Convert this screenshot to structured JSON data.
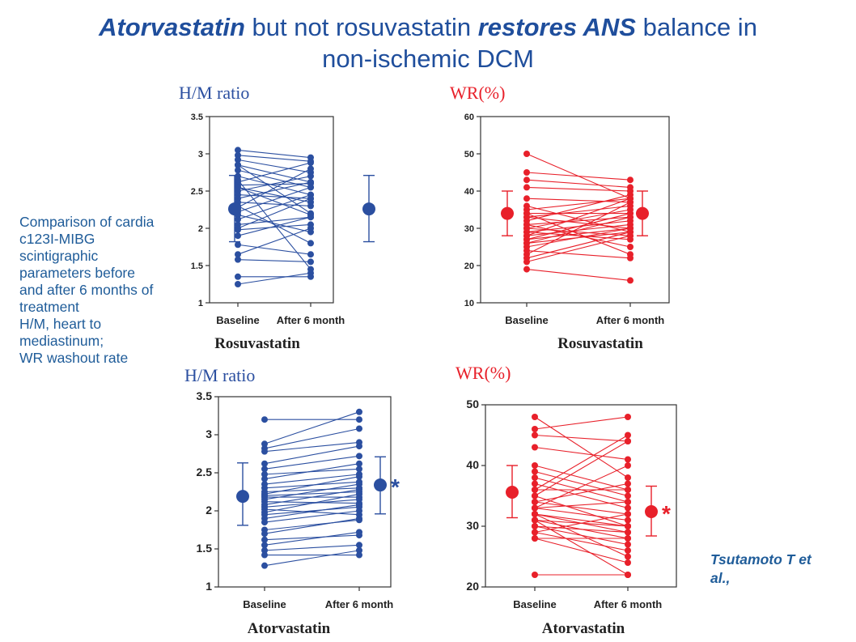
{
  "title": {
    "part1": "Atorvastatin",
    "part2": " but not rosuvastatin ",
    "part3": "restores ANS",
    "part4": " balance in",
    "line2": "non-ischemic DCM"
  },
  "caption": {
    "text": "Comparison of cardia c123I-MIBG scintigraphic parameters before and after 6 months of treatment",
    "abbrev1": "H/M, heart to mediastinum;",
    "abbrev2": "WR washout rate"
  },
  "citation": "Tsutamoto T et al.,",
  "colors": {
    "hm": "#2b4fa0",
    "wr": "#e8202a",
    "title": "#1f4e9c",
    "caption": "#1f5c99"
  },
  "chart_data": [
    {
      "type": "line",
      "title": "H/M ratio",
      "xlabel": "Rosuvastatin",
      "categories": [
        "Baseline",
        "After 6 month"
      ],
      "ylim": [
        1,
        3.5
      ],
      "yticks": [
        "1",
        "1.5",
        "2",
        "2.5",
        "3",
        "3.5"
      ],
      "pairs": [
        [
          3.05,
          2.95
        ],
        [
          2.98,
          2.9
        ],
        [
          2.92,
          2.75
        ],
        [
          2.85,
          2.62
        ],
        [
          2.78,
          2.55
        ],
        [
          2.7,
          2.45
        ],
        [
          2.62,
          2.88
        ],
        [
          2.58,
          2.6
        ],
        [
          2.55,
          2.18
        ],
        [
          2.5,
          2.7
        ],
        [
          2.45,
          2.4
        ],
        [
          2.4,
          2.62
        ],
        [
          2.35,
          2.3
        ],
        [
          2.28,
          2.8
        ],
        [
          2.22,
          2.55
        ],
        [
          2.18,
          1.95
        ],
        [
          2.12,
          2.45
        ],
        [
          2.05,
          2.15
        ],
        [
          1.98,
          2.05
        ],
        [
          1.9,
          2.15
        ],
        [
          1.78,
          1.65
        ],
        [
          1.65,
          2.0
        ],
        [
          1.58,
          1.55
        ],
        [
          1.35,
          1.35
        ],
        [
          1.25,
          1.4
        ],
        [
          2.65,
          1.45
        ],
        [
          2.3,
          1.8
        ],
        [
          2.85,
          2.2
        ],
        [
          2.0,
          2.4
        ],
        [
          2.55,
          2.35
        ]
      ],
      "summary": [
        {
          "mean": 2.26,
          "upper": 2.71,
          "lower": 1.82
        },
        {
          "mean": 2.26,
          "upper": 2.71,
          "lower": 1.82
        }
      ]
    },
    {
      "type": "line",
      "title": "WR(%)",
      "xlabel": "Rosuvastatin",
      "categories": [
        "Baseline",
        "After 6 month"
      ],
      "ylim": [
        10,
        60
      ],
      "yticks": [
        "10",
        "20",
        "30",
        "40",
        "50",
        "60"
      ],
      "pairs": [
        [
          50,
          38
        ],
        [
          45,
          43
        ],
        [
          43,
          41
        ],
        [
          41,
          40
        ],
        [
          38,
          37
        ],
        [
          35,
          38
        ],
        [
          34,
          34
        ],
        [
          33,
          36
        ],
        [
          33,
          30
        ],
        [
          32,
          39
        ],
        [
          31,
          33
        ],
        [
          30,
          28
        ],
        [
          30,
          35
        ],
        [
          29,
          32
        ],
        [
          29,
          27
        ],
        [
          28,
          31
        ],
        [
          28,
          38
        ],
        [
          27,
          30
        ],
        [
          26,
          29
        ],
        [
          26,
          33
        ],
        [
          25,
          30
        ],
        [
          24,
          22
        ],
        [
          23,
          37
        ],
        [
          22,
          29
        ],
        [
          21,
          28
        ],
        [
          19,
          16
        ],
        [
          34,
          23
        ],
        [
          31,
          25
        ],
        [
          27,
          34
        ],
        [
          36,
          29
        ]
      ],
      "summary": [
        {
          "mean": 34,
          "upper": 40,
          "lower": 28
        },
        {
          "mean": 34,
          "upper": 40,
          "lower": 28
        }
      ]
    },
    {
      "type": "line",
      "title": "H/M ratio",
      "xlabel": "Atorvastatin",
      "categories": [
        "Baseline",
        "After 6 month"
      ],
      "ylim": [
        1,
        3.5
      ],
      "yticks": [
        "1",
        "1.5",
        "2",
        "2.5",
        "3",
        "3.5"
      ],
      "pairs": [
        [
          3.2,
          3.2
        ],
        [
          2.88,
          3.3
        ],
        [
          2.82,
          3.08
        ],
        [
          2.78,
          2.9
        ],
        [
          2.62,
          2.85
        ],
        [
          2.55,
          2.72
        ],
        [
          2.48,
          2.55
        ],
        [
          2.42,
          2.62
        ],
        [
          2.35,
          2.48
        ],
        [
          2.3,
          2.38
        ],
        [
          2.25,
          2.3
        ],
        [
          2.22,
          2.45
        ],
        [
          2.2,
          2.25
        ],
        [
          2.18,
          2.18
        ],
        [
          2.15,
          2.35
        ],
        [
          2.12,
          2.1
        ],
        [
          2.08,
          2.28
        ],
        [
          2.05,
          2.15
        ],
        [
          2.02,
          1.95
        ],
        [
          1.98,
          2.22
        ],
        [
          1.95,
          2.05
        ],
        [
          1.9,
          2.08
        ],
        [
          1.85,
          2.0
        ],
        [
          1.75,
          1.88
        ],
        [
          1.7,
          1.9
        ],
        [
          1.62,
          1.68
        ],
        [
          1.55,
          1.72
        ],
        [
          1.48,
          1.55
        ],
        [
          1.42,
          1.42
        ],
        [
          1.28,
          1.48
        ]
      ],
      "summary": [
        {
          "mean": 2.19,
          "upper": 2.63,
          "lower": 1.81
        },
        {
          "mean": 2.34,
          "upper": 2.71,
          "lower": 1.96
        }
      ],
      "annotation": "*"
    },
    {
      "type": "line",
      "title": "WR(%)",
      "xlabel": "Atorvastatin",
      "categories": [
        "Baseline",
        "After 6 month"
      ],
      "ylim": [
        20,
        50
      ],
      "yticks": [
        "20",
        "30",
        "40",
        "50"
      ],
      "pairs": [
        [
          48,
          38
        ],
        [
          46,
          48
        ],
        [
          45,
          44
        ],
        [
          43,
          41
        ],
        [
          40,
          36
        ],
        [
          39,
          35
        ],
        [
          38,
          34
        ],
        [
          37,
          33
        ],
        [
          36,
          36
        ],
        [
          35,
          30
        ],
        [
          34,
          32
        ],
        [
          33,
          34
        ],
        [
          33,
          31
        ],
        [
          32,
          30
        ],
        [
          32,
          29
        ],
        [
          31,
          28
        ],
        [
          31,
          30
        ],
        [
          30,
          29
        ],
        [
          30,
          27
        ],
        [
          29,
          26
        ],
        [
          29,
          32
        ],
        [
          28,
          28
        ],
        [
          28,
          24
        ],
        [
          36,
          45
        ],
        [
          34,
          37
        ],
        [
          33,
          40
        ],
        [
          31,
          22
        ],
        [
          22,
          22
        ],
        [
          35,
          44
        ],
        [
          32,
          25
        ]
      ],
      "summary": [
        {
          "mean": 35.6,
          "upper": 40,
          "lower": 31.4
        },
        {
          "mean": 32.4,
          "upper": 36.6,
          "lower": 28.4
        }
      ],
      "annotation": "*"
    }
  ]
}
